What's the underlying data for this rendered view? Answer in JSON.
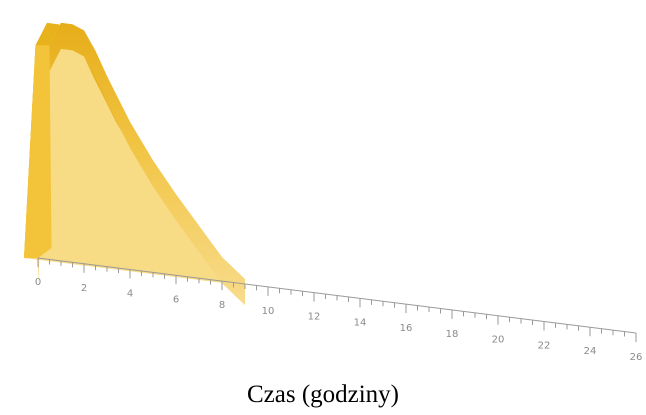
{
  "chart_data": {
    "type": "area",
    "title": "",
    "xlabel": "Czas (godziny)",
    "ylabel": "",
    "xlim": [
      0,
      26
    ],
    "x_ticks": [
      "0",
      "2",
      "4",
      "6",
      "8",
      "10",
      "12",
      "14",
      "16",
      "18",
      "20",
      "22",
      "24",
      "26"
    ],
    "grid": false,
    "series": [
      {
        "x": [
          0,
          0.5,
          1,
          1.5,
          2,
          2.5,
          3,
          4,
          5,
          6,
          7,
          8,
          9
        ],
        "y": [
          0,
          0.9,
          1.0,
          1.0,
          0.98,
          0.9,
          0.8,
          0.62,
          0.47,
          0.34,
          0.22,
          0.1,
          0.02
        ]
      }
    ],
    "colors": {
      "ribbon_front": "#f3c43a",
      "ribbon_top": "#e8b21c",
      "ribbon_back": "#f7d778",
      "axis": "#9a9a9a"
    }
  }
}
